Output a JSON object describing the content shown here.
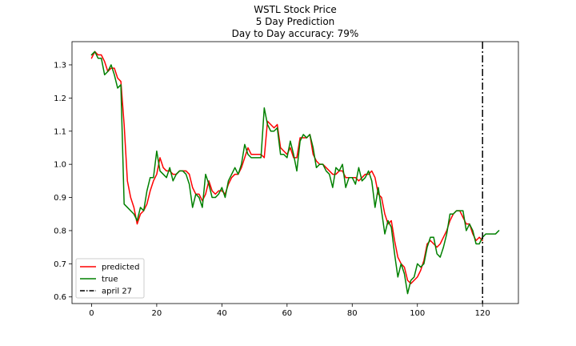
{
  "chart_data": {
    "type": "line",
    "title_lines": [
      "WSTL Stock Price",
      "5 Day Prediction",
      "Day to Day accuracy: 79%"
    ],
    "xlabel": "",
    "ylabel": "",
    "xlim": [
      -6,
      131
    ],
    "ylim": [
      0.58,
      1.37
    ],
    "x_ticks": [
      0,
      20,
      40,
      60,
      80,
      100,
      120
    ],
    "y_ticks": [
      0.6,
      0.7,
      0.8,
      0.9,
      1.0,
      1.1,
      1.2,
      1.3
    ],
    "grid": false,
    "legend_position": "lower-left",
    "series": [
      {
        "name": "predicted",
        "color": "#ff0000",
        "x": [
          0,
          1,
          2,
          3,
          4,
          5,
          6,
          7,
          8,
          9,
          10,
          11,
          12,
          13,
          14,
          15,
          16,
          17,
          18,
          19,
          20,
          21,
          22,
          23,
          24,
          25,
          26,
          27,
          28,
          29,
          30,
          31,
          32,
          33,
          34,
          35,
          36,
          37,
          38,
          39,
          40,
          41,
          42,
          43,
          44,
          45,
          46,
          47,
          48,
          49,
          50,
          51,
          52,
          53,
          54,
          55,
          56,
          57,
          58,
          59,
          60,
          61,
          62,
          63,
          64,
          65,
          66,
          67,
          68,
          69,
          70,
          71,
          72,
          73,
          74,
          75,
          76,
          77,
          78,
          79,
          80,
          81,
          82,
          83,
          84,
          85,
          86,
          87,
          88,
          89,
          90,
          91,
          92,
          93,
          94,
          95,
          96,
          97,
          98,
          99,
          100,
          101,
          102,
          103,
          104,
          105,
          106,
          107,
          108,
          109,
          110,
          111,
          112,
          113,
          114,
          115,
          116,
          117,
          118,
          119,
          120
        ],
        "values": [
          1.32,
          1.34,
          1.33,
          1.33,
          1.31,
          1.28,
          1.29,
          1.29,
          1.26,
          1.25,
          1.12,
          0.95,
          0.9,
          0.87,
          0.82,
          0.85,
          0.86,
          0.88,
          0.92,
          0.95,
          0.97,
          1.02,
          0.99,
          0.98,
          0.98,
          0.97,
          0.97,
          0.98,
          0.98,
          0.98,
          0.97,
          0.93,
          0.91,
          0.91,
          0.89,
          0.91,
          0.95,
          0.92,
          0.91,
          0.92,
          0.92,
          0.91,
          0.94,
          0.96,
          0.97,
          0.97,
          0.99,
          1.02,
          1.05,
          1.03,
          1.03,
          1.03,
          1.03,
          1.02,
          1.13,
          1.12,
          1.11,
          1.12,
          1.05,
          1.04,
          1.03,
          1.05,
          1.02,
          1.02,
          1.08,
          1.08,
          1.08,
          1.09,
          1.03,
          1.01,
          1.0,
          1.0,
          0.99,
          0.98,
          0.97,
          0.97,
          0.98,
          0.98,
          0.96,
          0.96,
          0.96,
          0.96,
          0.95,
          0.96,
          0.97,
          0.97,
          0.98,
          0.96,
          0.91,
          0.9,
          0.85,
          0.82,
          0.83,
          0.77,
          0.72,
          0.7,
          0.69,
          0.65,
          0.64,
          0.65,
          0.66,
          0.68,
          0.71,
          0.76,
          0.77,
          0.76,
          0.75,
          0.76,
          0.78,
          0.8,
          0.83,
          0.85,
          0.86,
          0.86,
          0.84,
          0.82,
          0.82,
          0.79,
          0.77,
          0.78,
          0.77
        ]
      },
      {
        "name": "true",
        "color": "#008000",
        "x": [
          0,
          1,
          2,
          3,
          4,
          5,
          6,
          7,
          8,
          9,
          10,
          11,
          12,
          13,
          14,
          15,
          16,
          17,
          18,
          19,
          20,
          21,
          22,
          23,
          24,
          25,
          26,
          27,
          28,
          29,
          30,
          31,
          32,
          33,
          34,
          35,
          36,
          37,
          38,
          39,
          40,
          41,
          42,
          43,
          44,
          45,
          46,
          47,
          48,
          49,
          50,
          51,
          52,
          53,
          54,
          55,
          56,
          57,
          58,
          59,
          60,
          61,
          62,
          63,
          64,
          65,
          66,
          67,
          68,
          69,
          70,
          71,
          72,
          73,
          74,
          75,
          76,
          77,
          78,
          79,
          80,
          81,
          82,
          83,
          84,
          85,
          86,
          87,
          88,
          89,
          90,
          91,
          92,
          93,
          94,
          95,
          96,
          97,
          98,
          99,
          100,
          101,
          102,
          103,
          104,
          105,
          106,
          107,
          108,
          109,
          110,
          111,
          112,
          113,
          114,
          115,
          116,
          117,
          118,
          119,
          120,
          121,
          122,
          123,
          124,
          125
        ],
        "values": [
          1.33,
          1.34,
          1.32,
          1.32,
          1.27,
          1.28,
          1.3,
          1.27,
          1.23,
          1.24,
          0.88,
          0.87,
          0.86,
          0.85,
          0.83,
          0.87,
          0.86,
          0.92,
          0.96,
          0.96,
          1.04,
          0.98,
          0.97,
          0.96,
          0.99,
          0.95,
          0.97,
          0.98,
          0.98,
          0.97,
          0.94,
          0.87,
          0.91,
          0.9,
          0.87,
          0.97,
          0.94,
          0.9,
          0.9,
          0.91,
          0.93,
          0.9,
          0.95,
          0.97,
          0.99,
          0.97,
          1.0,
          1.06,
          1.03,
          1.02,
          1.02,
          1.02,
          1.02,
          1.17,
          1.12,
          1.1,
          1.1,
          1.11,
          1.03,
          1.03,
          1.02,
          1.07,
          1.03,
          0.98,
          1.07,
          1.09,
          1.08,
          1.09,
          1.05,
          0.99,
          1.0,
          1.0,
          0.98,
          0.97,
          0.93,
          0.99,
          0.98,
          1.0,
          0.93,
          0.96,
          0.96,
          0.94,
          0.99,
          0.95,
          0.96,
          0.98,
          0.95,
          0.87,
          0.93,
          0.86,
          0.79,
          0.83,
          0.81,
          0.73,
          0.66,
          0.7,
          0.67,
          0.61,
          0.65,
          0.66,
          0.7,
          0.69,
          0.7,
          0.75,
          0.78,
          0.78,
          0.73,
          0.72,
          0.75,
          0.79,
          0.85,
          0.85,
          0.86,
          0.86,
          0.86,
          0.8,
          0.82,
          0.8,
          0.76,
          0.76,
          0.78,
          0.79,
          0.79,
          0.79,
          0.79,
          0.8
        ]
      }
    ],
    "vlines": [
      {
        "name": "april 27",
        "x": 120,
        "color": "#000000",
        "style": "dashdot"
      }
    ],
    "legend": [
      {
        "label": "predicted",
        "color": "#ff0000",
        "style": "solid"
      },
      {
        "label": "true",
        "color": "#008000",
        "style": "solid"
      },
      {
        "label": "april 27",
        "color": "#000000",
        "style": "dashdot"
      }
    ]
  }
}
